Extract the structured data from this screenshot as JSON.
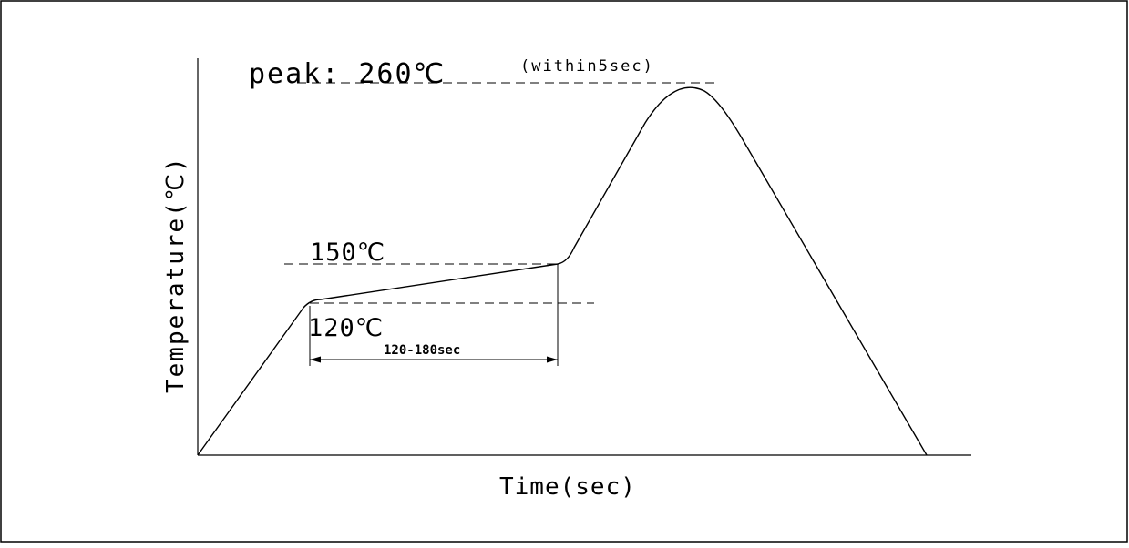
{
  "diagram": {
    "peak_label": "peak: 260℃",
    "peak_note": "(within5sec)",
    "label_150": "150℃",
    "label_120": "120℃",
    "duration_label": "120-180sec",
    "ylabel": "Temperature(℃)",
    "xlabel": "Time(sec)"
  }
}
